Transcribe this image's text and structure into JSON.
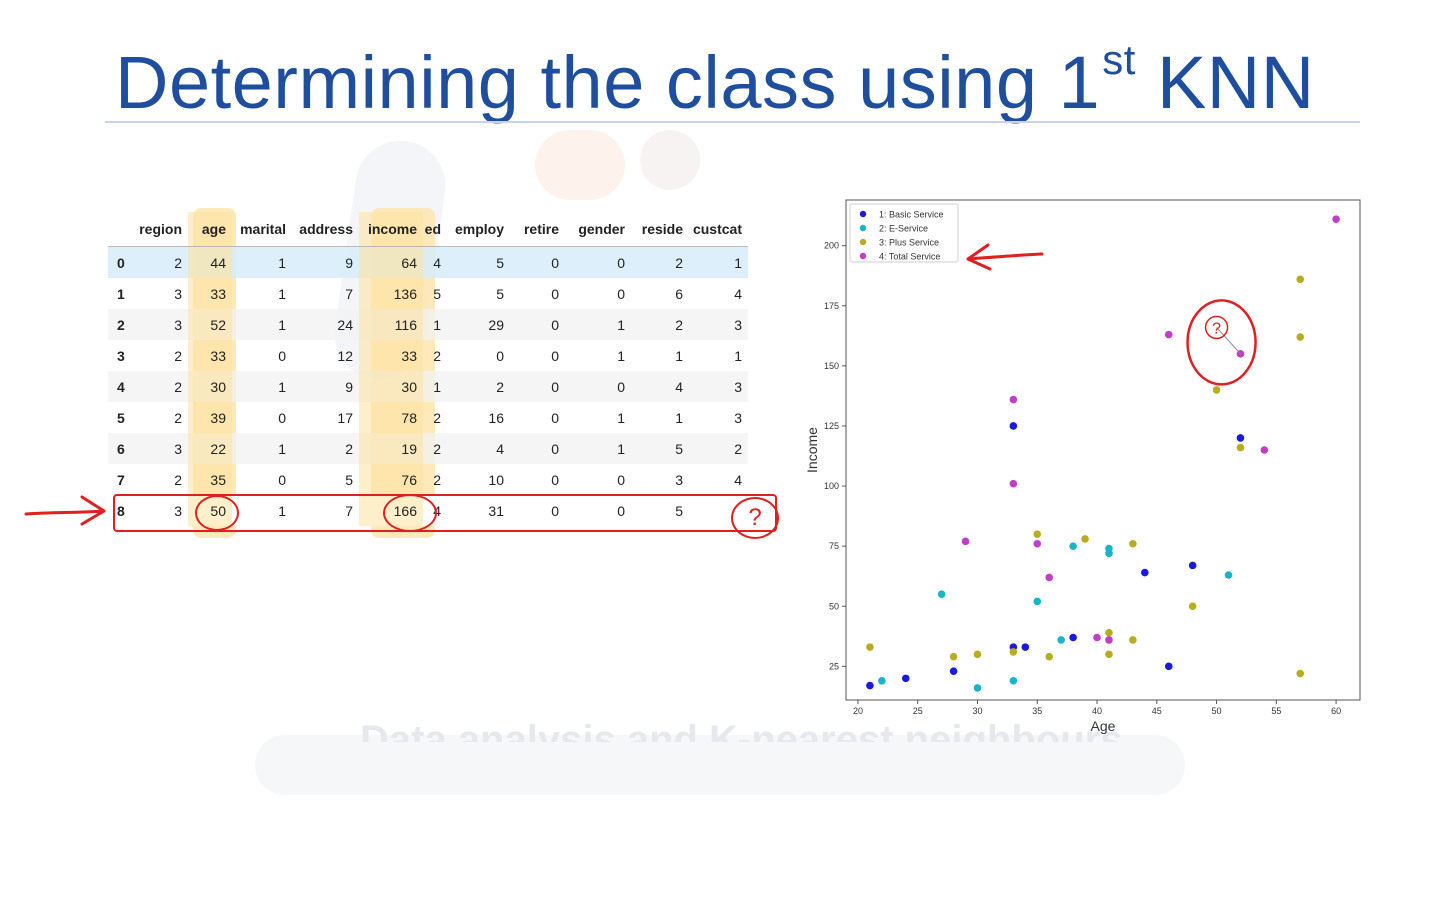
{
  "slide": {
    "title": "Determining the class using 1",
    "title_sup": "st",
    "title_tail": " KNN",
    "faded_caption": "Data analysis and K-nearest neighbours"
  },
  "table": {
    "columns": [
      "",
      "region",
      "age",
      "marital",
      "address",
      "income",
      "ed",
      "employ",
      "retire",
      "gender",
      "reside",
      "custcat"
    ],
    "rows": [
      [
        "0",
        "2",
        "44",
        "1",
        "9",
        "64",
        "4",
        "5",
        "0",
        "0",
        "2",
        "1"
      ],
      [
        "1",
        "3",
        "33",
        "1",
        "7",
        "136",
        "5",
        "5",
        "0",
        "0",
        "6",
        "4"
      ],
      [
        "2",
        "3",
        "52",
        "1",
        "24",
        "116",
        "1",
        "29",
        "0",
        "1",
        "2",
        "3"
      ],
      [
        "3",
        "2",
        "33",
        "0",
        "12",
        "33",
        "2",
        "0",
        "0",
        "1",
        "1",
        "1"
      ],
      [
        "4",
        "2",
        "30",
        "1",
        "9",
        "30",
        "1",
        "2",
        "0",
        "0",
        "4",
        "3"
      ],
      [
        "5",
        "2",
        "39",
        "0",
        "17",
        "78",
        "2",
        "16",
        "0",
        "1",
        "1",
        "3"
      ],
      [
        "6",
        "3",
        "22",
        "1",
        "2",
        "19",
        "2",
        "4",
        "0",
        "1",
        "5",
        "2"
      ],
      [
        "7",
        "2",
        "35",
        "0",
        "5",
        "76",
        "2",
        "10",
        "0",
        "0",
        "3",
        "4"
      ],
      [
        "8",
        "3",
        "50",
        "1",
        "7",
        "166",
        "4",
        "31",
        "0",
        "0",
        "5",
        ""
      ]
    ],
    "unknown_mark": "?"
  },
  "chart_data": {
    "type": "scatter",
    "xlabel": "Age",
    "ylabel": "Income",
    "xlim": [
      19,
      62
    ],
    "ylim": [
      11,
      219
    ],
    "xticks": [
      20,
      25,
      30,
      35,
      40,
      45,
      50,
      55,
      60
    ],
    "yticks": [
      25,
      50,
      75,
      100,
      125,
      150,
      175,
      200
    ],
    "legend_position": "top-left",
    "series": [
      {
        "name": "1: Basic Service",
        "color": "#1a1adc",
        "points": [
          [
            21,
            17
          ],
          [
            24,
            20
          ],
          [
            28,
            23
          ],
          [
            33,
            33
          ],
          [
            33,
            125
          ],
          [
            34,
            33
          ],
          [
            38,
            37
          ],
          [
            44,
            64
          ],
          [
            46,
            25
          ],
          [
            48,
            67
          ],
          [
            52,
            120
          ]
        ]
      },
      {
        "name": "2: E-Service",
        "color": "#19b4c8",
        "points": [
          [
            22,
            19
          ],
          [
            27,
            55
          ],
          [
            30,
            16
          ],
          [
            33,
            19
          ],
          [
            35,
            52
          ],
          [
            37,
            36
          ],
          [
            38,
            75
          ],
          [
            41,
            74
          ],
          [
            41,
            72
          ],
          [
            51,
            63
          ]
        ]
      },
      {
        "name": "3: Plus Service",
        "color": "#b8ad20",
        "points": [
          [
            21,
            33
          ],
          [
            28,
            29
          ],
          [
            30,
            30
          ],
          [
            33,
            31
          ],
          [
            35,
            80
          ],
          [
            36,
            29
          ],
          [
            39,
            78
          ],
          [
            41,
            39
          ],
          [
            41,
            30
          ],
          [
            43,
            76
          ],
          [
            43,
            36
          ],
          [
            48,
            50
          ],
          [
            50,
            140
          ],
          [
            52,
            116
          ],
          [
            57,
            186
          ],
          [
            57,
            162
          ],
          [
            57,
            22
          ]
        ]
      },
      {
        "name": "4: Total Service",
        "color": "#c23ec8",
        "points": [
          [
            29,
            77
          ],
          [
            33,
            136
          ],
          [
            33,
            101
          ],
          [
            35,
            76
          ],
          [
            36,
            62
          ],
          [
            40,
            37
          ],
          [
            41,
            36
          ],
          [
            46,
            163
          ],
          [
            52,
            155
          ],
          [
            54,
            115
          ],
          [
            60,
            211
          ]
        ]
      }
    ],
    "query_point": {
      "x": 50,
      "y": 166,
      "label": "?"
    }
  },
  "colors": {
    "title": "#1f4e9e",
    "annotation_red": "#e02020",
    "column_highlight": "#fde7b2",
    "row0_highlight": "#d6ecfa"
  }
}
